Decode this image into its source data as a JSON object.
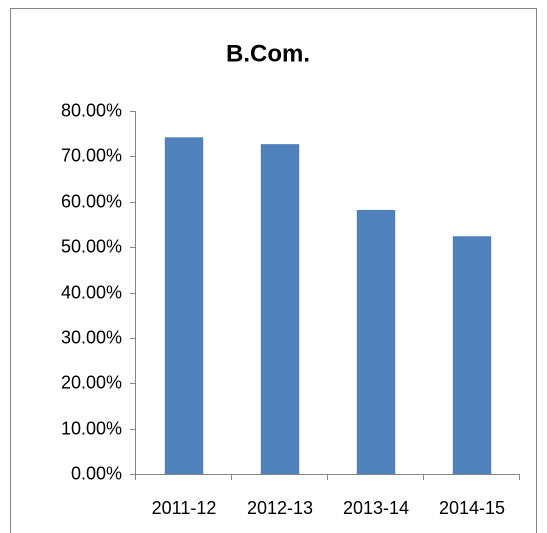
{
  "chart_data": {
    "type": "bar",
    "title": "B.Com.",
    "categories": [
      "2011-12",
      "2012-13",
      "2013-14",
      "2014-15"
    ],
    "values": [
      74.2,
      72.7,
      58.2,
      52.4
    ],
    "color": "#4f81bd",
    "ylim": [
      0,
      80
    ],
    "yticks": [
      {
        "value": 0,
        "label": "0.00%"
      },
      {
        "value": 10,
        "label": "10.00%"
      },
      {
        "value": 20,
        "label": "20.00%"
      },
      {
        "value": 30,
        "label": "30.00%"
      },
      {
        "value": 40,
        "label": "40.00%"
      },
      {
        "value": 50,
        "label": "50.00%"
      },
      {
        "value": 60,
        "label": "60.00%"
      },
      {
        "value": 70,
        "label": "70.00%"
      },
      {
        "value": 80,
        "label": "80.00%"
      }
    ],
    "grid": false
  }
}
